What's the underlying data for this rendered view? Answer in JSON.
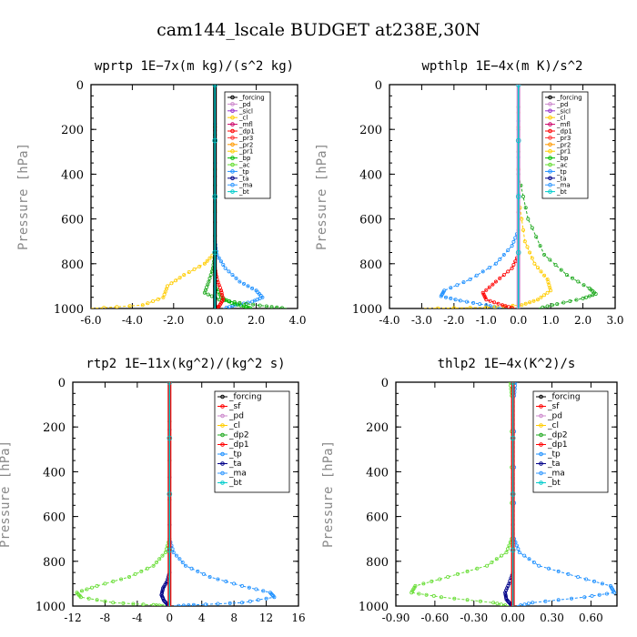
{
  "figure": {
    "title": "cam144_lscale  BUDGET at238E,30N"
  },
  "chart_data": [
    {
      "type": "line",
      "title": "wprtp   1E−7x(m kg)/(s^2 kg)",
      "ylabel": "Pressure [hPa]",
      "xlim": [
        -6.0,
        4.0
      ],
      "ylim": [
        1000,
        0
      ],
      "y_reversed": true,
      "xticks": [
        "-6.0",
        "-4.0",
        "-2.0",
        "0.0",
        "2.0",
        "4.0"
      ],
      "yticks": [
        "0",
        "200",
        "400",
        "600",
        "800",
        "1000"
      ],
      "legend_position": "top-right",
      "legend": [
        "_forcing",
        "_pd",
        "_sicl",
        "_cl",
        "_mfl",
        "_dp1",
        "_pr3",
        "_pr2",
        "_pr1",
        "_bp",
        "_ac",
        "_tp",
        "_ta",
        "_ma",
        "_bt"
      ],
      "series": [
        {
          "name": "_tp",
          "color": "#1e90ff",
          "x": [
            0,
            0,
            0.1,
            0.5,
            1.2,
            2.0,
            2.3,
            1.8,
            1.0,
            0.4
          ],
          "y": [
            0,
            700,
            760,
            820,
            880,
            920,
            950,
            970,
            985,
            1000
          ]
        },
        {
          "name": "_ac",
          "color": "#22aa22",
          "x": [
            0,
            0,
            -0.1,
            -0.3,
            -0.5,
            0.2,
            1.2,
            2.5,
            3.5
          ],
          "y": [
            0,
            760,
            820,
            880,
            930,
            960,
            975,
            990,
            1000
          ]
        },
        {
          "name": "_bp",
          "color": "#00bb00",
          "x": [
            0,
            0,
            0.3,
            0.8,
            1.4,
            1.8
          ],
          "y": [
            0,
            900,
            950,
            975,
            990,
            1000
          ]
        },
        {
          "name": "_pr1",
          "color": "#ffcc00",
          "x": [
            0,
            0,
            -0.5,
            -1.5,
            -2.3,
            -2.5,
            -3.5,
            -6.0
          ],
          "y": [
            0,
            750,
            800,
            850,
            900,
            950,
            985,
            1000
          ]
        },
        {
          "name": "_dp1",
          "color": "#ff0000",
          "x": [
            0,
            0,
            0.1,
            0.3,
            0.4,
            0.2,
            0
          ],
          "y": [
            0,
            820,
            870,
            920,
            960,
            990,
            1000
          ]
        },
        {
          "name": "_forcing",
          "color": "#000000",
          "x": [
            0,
            0
          ],
          "y": [
            0,
            1000
          ]
        },
        {
          "name": "_bt",
          "color": "#00cccc",
          "x": [
            0,
            0
          ],
          "y": [
            0,
            1000
          ]
        }
      ]
    },
    {
      "type": "line",
      "title": "wpthlp   1E−4x(m K)/s^2",
      "ylabel": "Pressure [hPa]",
      "xlim": [
        -4.0,
        3.0
      ],
      "ylim": [
        1000,
        0
      ],
      "y_reversed": true,
      "xticks": [
        "-4.0",
        "-3.0",
        "-2.0",
        "-1.0",
        "0.0",
        "1.0",
        "2.0",
        "3.0"
      ],
      "yticks": [
        "0",
        "200",
        "400",
        "600",
        "800",
        "1000"
      ],
      "legend_position": "top-right",
      "legend": [
        "_forcing",
        "_pd",
        "_sicl",
        "_cl",
        "_mfl",
        "_dp1",
        "_pr3",
        "_pr2",
        "_pr1",
        "_bp",
        "_ac",
        "_tp",
        "_ta",
        "_ma",
        "_bt"
      ],
      "series": [
        {
          "name": "_tp",
          "color": "#1e90ff",
          "x": [
            0,
            0,
            -0.2,
            -0.7,
            -1.5,
            -2.3,
            -2.4,
            -1.8,
            -1.0,
            -0.5
          ],
          "y": [
            0,
            650,
            720,
            800,
            870,
            920,
            945,
            965,
            985,
            1000
          ]
        },
        {
          "name": "_ac",
          "color": "#22aa22",
          "x": [
            0,
            0,
            0.3,
            0.8,
            1.5,
            2.2,
            2.4,
            2.0,
            1.2,
            0.6
          ],
          "y": [
            0,
            400,
            600,
            760,
            850,
            910,
            935,
            955,
            980,
            1000
          ]
        },
        {
          "name": "_pr1",
          "color": "#ffcc00",
          "x": [
            0,
            0,
            0.2,
            0.5,
            0.9,
            1.0,
            0.6,
            0.1,
            -1.0,
            -3.0
          ],
          "y": [
            0,
            500,
            700,
            800,
            870,
            920,
            960,
            985,
            995,
            1000
          ]
        },
        {
          "name": "_dp1",
          "color": "#ff0000",
          "x": [
            0,
            0,
            -0.2,
            -0.7,
            -1.1,
            -1.0,
            -0.5,
            -0.1
          ],
          "y": [
            0,
            760,
            820,
            880,
            930,
            960,
            985,
            1000
          ]
        },
        {
          "name": "_forcing",
          "color": "#cc88cc",
          "x": [
            0,
            0
          ],
          "y": [
            0,
            1000
          ]
        },
        {
          "name": "_bt",
          "color": "#00cccc",
          "x": [
            0,
            0
          ],
          "y": [
            0,
            1000
          ]
        }
      ]
    },
    {
      "type": "line",
      "title": "rtp2   1E−11x(kg^2)/(kg^2 s)",
      "ylabel": "Pressure [hPa]",
      "xlim": [
        -12,
        16
      ],
      "ylim": [
        1000,
        0
      ],
      "y_reversed": true,
      "xticks": [
        "-12",
        "-8",
        "-4",
        "0",
        "4",
        "8",
        "12",
        "16"
      ],
      "yticks": [
        "0",
        "200",
        "400",
        "600",
        "800",
        "1000"
      ],
      "legend_position": "top-right",
      "legend": [
        "_forcing",
        "_sf",
        "_pd",
        "_cl",
        "_dp2",
        "_dp1",
        "_tp",
        "_ta",
        "_ma",
        "_bt"
      ],
      "series": [
        {
          "name": "_tp",
          "color": "#1e90ff",
          "x": [
            0,
            0,
            0.5,
            2,
            5,
            9,
            12.5,
            13,
            9,
            3,
            0.5
          ],
          "y": [
            0,
            700,
            760,
            820,
            870,
            910,
            940,
            960,
            985,
            995,
            1000
          ]
        },
        {
          "name": "_dp1",
          "color": "#66dd33",
          "x": [
            0,
            0,
            -0.5,
            -2,
            -5,
            -9,
            -11.5,
            -11,
            -7,
            -2,
            -0.5
          ],
          "y": [
            0,
            700,
            760,
            820,
            870,
            910,
            940,
            960,
            985,
            995,
            1000
          ]
        },
        {
          "name": "_ta",
          "color": "#000088",
          "x": [
            0,
            0,
            -0.3,
            -0.8,
            -1.0,
            -0.7,
            -0.2,
            0
          ],
          "y": [
            0,
            850,
            890,
            920,
            950,
            975,
            995,
            1000
          ]
        },
        {
          "name": "_forcing",
          "color": "#ff0000",
          "x": [
            0,
            0
          ],
          "y": [
            0,
            1000
          ]
        },
        {
          "name": "_bt",
          "color": "#00cccc",
          "x": [
            0,
            0
          ],
          "y": [
            0,
            1000
          ]
        }
      ]
    },
    {
      "type": "line",
      "title": "thlp2   1E−4x(K^2)/s",
      "ylabel": "Pressure [hPa]",
      "xlim": [
        -0.9,
        0.8
      ],
      "ylim": [
        1000,
        0
      ],
      "y_reversed": true,
      "xticks": [
        "-0.90",
        "-0.60",
        "-0.30",
        "0.00",
        "0.30",
        "0.60"
      ],
      "yticks": [
        "0",
        "200",
        "400",
        "600",
        "800",
        "1000"
      ],
      "legend_position": "top-right",
      "legend": [
        "_forcing",
        "_sf",
        "_pd",
        "_cl",
        "_dp2",
        "_dp1",
        "_tp",
        "_ta",
        "_ma",
        "_bt"
      ],
      "series": [
        {
          "name": "_tp",
          "color": "#1e90ff",
          "x": [
            0.02,
            0.01,
            0.01,
            0.05,
            0.2,
            0.5,
            0.75,
            0.78,
            0.55,
            0.15,
            0.03
          ],
          "y": [
            0,
            60,
            700,
            760,
            820,
            870,
            910,
            940,
            960,
            985,
            1000
          ]
        },
        {
          "name": "_dp1",
          "color": "#66dd33",
          "x": [
            -0.02,
            -0.01,
            -0.01,
            -0.05,
            -0.2,
            -0.5,
            -0.75,
            -0.78,
            -0.55,
            -0.15,
            -0.03
          ],
          "y": [
            0,
            60,
            700,
            760,
            820,
            870,
            910,
            940,
            960,
            985,
            1000
          ]
        },
        {
          "name": "_ta",
          "color": "#000088",
          "x": [
            0,
            0,
            -0.03,
            -0.06,
            -0.05,
            -0.02,
            0
          ],
          "y": [
            0,
            850,
            900,
            940,
            970,
            990,
            1000
          ]
        },
        {
          "name": "_forcing",
          "color": "#ff0000",
          "x": [
            0,
            0
          ],
          "y": [
            0,
            1000
          ]
        },
        {
          "name": "_bt",
          "color": "#00cccc",
          "x": [
            0,
            0
          ],
          "y": [
            0,
            1000
          ]
        }
      ]
    }
  ],
  "legend_colors": {
    "_forcing": "#000000",
    "_pd": "#cc88cc",
    "_sicl": "#9933cc",
    "_cl": "#ffcc00",
    "_sf": "#ff0000",
    "_mfl": "#cc0066",
    "_dp1": "#ff0000",
    "_dp2": "#22aa22",
    "_pr3": "#ff3333",
    "_pr2": "#ff9900",
    "_pr1": "#ffcc00",
    "_bp": "#00bb00",
    "_ac": "#66dd33",
    "_tp": "#1e90ff",
    "_ta": "#000088",
    "_ma": "#3399ff",
    "_bt": "#00cccc"
  }
}
